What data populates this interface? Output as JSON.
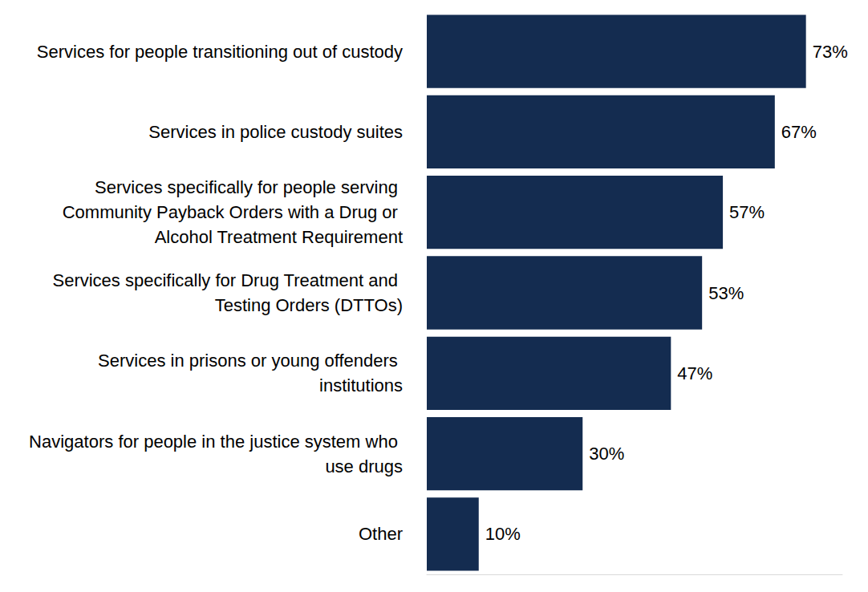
{
  "chart_data": {
    "type": "bar",
    "orientation": "horizontal",
    "categories": [
      "Services for people transitioning out of custody",
      "Services in police custody suites",
      "Services specifically for people serving Community Payback Orders with a Drug or Alcohol Treatment Requirement",
      "Services specifically for Drug Treatment and Testing Orders (DTTOs)",
      "Services in prisons or young offenders institutions",
      "Navigators for people in the justice system who use drugs",
      "Other"
    ],
    "values": [
      73,
      67,
      57,
      53,
      47,
      30,
      10
    ],
    "value_labels": [
      "73%",
      "67%",
      "57%",
      "53%",
      "47%",
      "30%",
      "10%"
    ],
    "color": "#142c50",
    "xlim": [
      0,
      80
    ],
    "grid": false,
    "data_labels": true,
    "tick_labels": "y"
  }
}
